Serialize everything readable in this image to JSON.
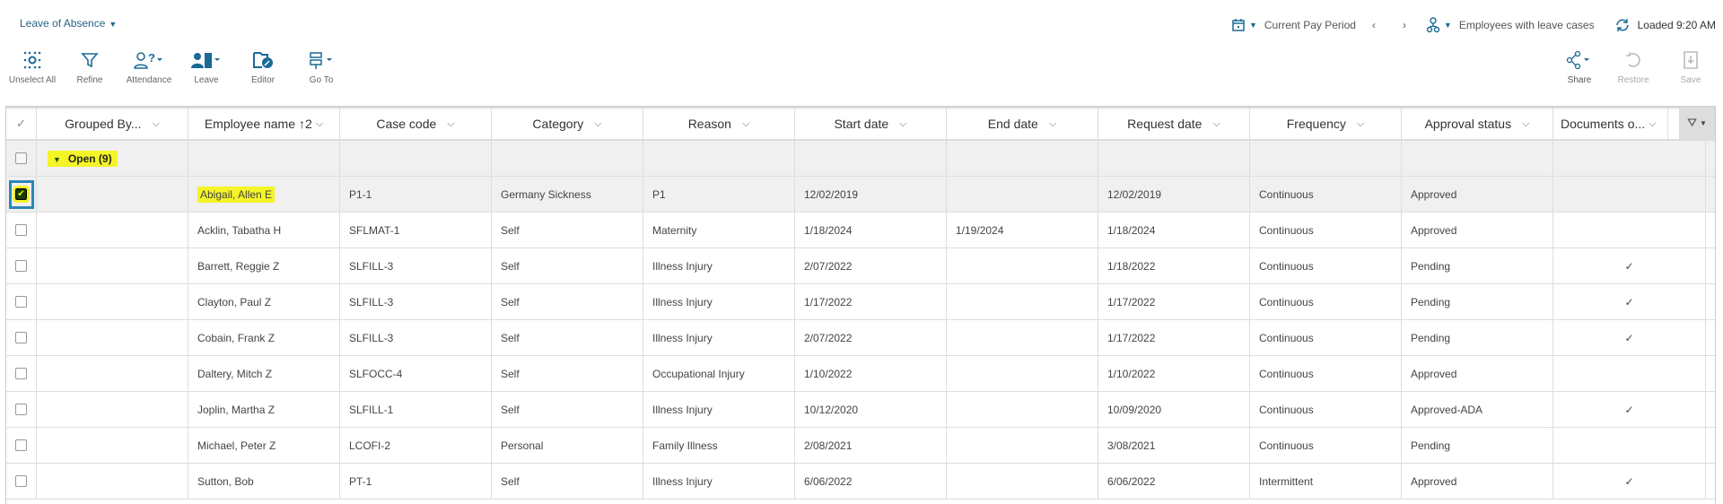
{
  "header": {
    "title": "Leave of Absence",
    "pay_period": "Current Pay Period",
    "prev": "‹",
    "next": "›",
    "employee_filter": "Employees with leave cases",
    "loaded": "Loaded 9:20 AM"
  },
  "toolbar": {
    "unselect_all": "Unselect All",
    "refine": "Refine",
    "attendance": "Attendance",
    "leave": "Leave",
    "editor": "Editor",
    "go_to": "Go To",
    "share": "Share",
    "restore": "Restore",
    "save": "Save"
  },
  "colors": {
    "accent": "#1a6a96",
    "highlight": "#f4f427",
    "focus": "#2a86b8"
  },
  "columns": [
    "Grouped By...",
    "Employee name",
    "Case code",
    "Category",
    "Reason",
    "Start date",
    "End date",
    "Request date",
    "Frequency",
    "Approval status",
    "Documents o..."
  ],
  "sort_indicator": "↑2",
  "group": {
    "label": "Open (9)"
  },
  "rows": [
    {
      "name": "Abigail, Allen E",
      "case": "P1-1",
      "category": "Germany Sickness",
      "reason": "P1",
      "start": "12/02/2019",
      "end": "",
      "request": "12/02/2019",
      "frequency": "Continuous",
      "status": "Approved",
      "docs": "",
      "selected": true
    },
    {
      "name": "Acklin, Tabatha H",
      "case": "SFLMAT-1",
      "category": "Self",
      "reason": "Maternity",
      "start": "1/18/2024",
      "end": "1/19/2024",
      "request": "1/18/2024",
      "frequency": "Continuous",
      "status": "Approved",
      "docs": ""
    },
    {
      "name": "Barrett, Reggie Z",
      "case": "SLFILL-3",
      "category": "Self",
      "reason": "Illness Injury",
      "start": "2/07/2022",
      "end": "",
      "request": "1/18/2022",
      "frequency": "Continuous",
      "status": "Pending",
      "docs": "✓"
    },
    {
      "name": "Clayton, Paul Z",
      "case": "SLFILL-3",
      "category": "Self",
      "reason": "Illness Injury",
      "start": "1/17/2022",
      "end": "",
      "request": "1/17/2022",
      "frequency": "Continuous",
      "status": "Pending",
      "docs": "✓"
    },
    {
      "name": "Cobain, Frank Z",
      "case": "SLFILL-3",
      "category": "Self",
      "reason": "Illness Injury",
      "start": "2/07/2022",
      "end": "",
      "request": "1/17/2022",
      "frequency": "Continuous",
      "status": "Pending",
      "docs": "✓"
    },
    {
      "name": "Daltery, Mitch Z",
      "case": "SLFOCC-4",
      "category": "Self",
      "reason": "Occupational Injury",
      "start": "1/10/2022",
      "end": "",
      "request": "1/10/2022",
      "frequency": "Continuous",
      "status": "Approved",
      "docs": ""
    },
    {
      "name": "Joplin, Martha Z",
      "case": "SLFILL-1",
      "category": "Self",
      "reason": "Illness Injury",
      "start": "10/12/2020",
      "end": "",
      "request": "10/09/2020",
      "frequency": "Continuous",
      "status": "Approved-ADA",
      "docs": "✓"
    },
    {
      "name": "Michael, Peter Z",
      "case": "LCOFI-2",
      "category": "Personal",
      "reason": "Family Illness",
      "start": "2/08/2021",
      "end": "",
      "request": "3/08/2021",
      "frequency": "Continuous",
      "status": "Pending",
      "docs": ""
    },
    {
      "name": "Sutton, Bob",
      "case": "PT-1",
      "category": "Self",
      "reason": "Illness Injury",
      "start": "6/06/2022",
      "end": "",
      "request": "6/06/2022",
      "frequency": "Intermittent",
      "status": "Approved",
      "docs": "✓"
    }
  ]
}
